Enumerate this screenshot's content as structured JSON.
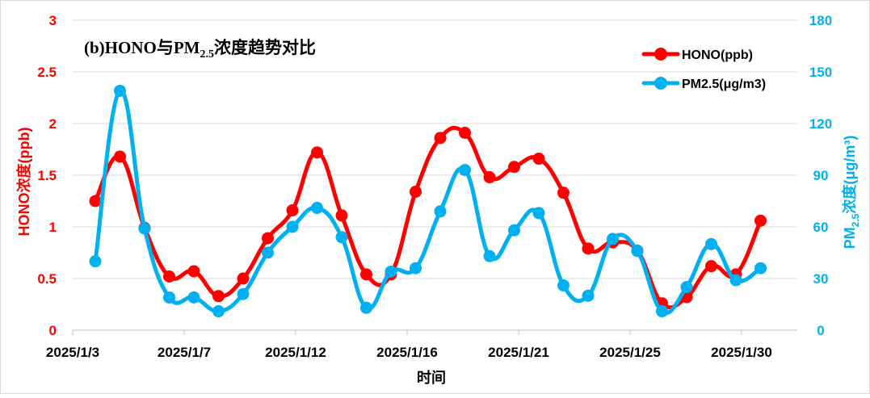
{
  "chart_data": {
    "type": "line",
    "title": "(b)HONO与PM",
    "title_sub": "2.5",
    "title_suffix": "浓度趋势对比",
    "xlabel": "时间",
    "ylabel_left": "HONO浓度(ppb)",
    "ylabel_right_prefix": "PM",
    "ylabel_right_sub": "2.5",
    "ylabel_right_suffix": "浓度(μg/m³)",
    "x_tick_labels": [
      "2025/1/3",
      "2025/1/7",
      "2025/1/12",
      "2025/1/16",
      "2025/1/21",
      "2025/1/25",
      "2025/1/30"
    ],
    "y_left": {
      "ylim": [
        0,
        3
      ],
      "ticks": [
        "0",
        "0.5",
        "1",
        "1.5",
        "2",
        "2.5",
        "3"
      ]
    },
    "y_right": {
      "ylim": [
        0,
        180
      ],
      "ticks": [
        "0",
        "30",
        "60",
        "90",
        "120",
        "150",
        "180"
      ]
    },
    "grid": true,
    "legend_position": "top-right",
    "series": [
      {
        "name": "HONO(ppb)",
        "axis": "left",
        "color": "#ff0000",
        "values": [
          1.25,
          1.68,
          0.99,
          0.52,
          0.57,
          0.33,
          0.5,
          0.89,
          1.16,
          1.72,
          1.11,
          0.54,
          0.54,
          1.34,
          1.86,
          1.91,
          1.48,
          1.58,
          1.66,
          1.33,
          0.79,
          0.85,
          0.77,
          0.26,
          0.32,
          0.62,
          0.54,
          1.06
        ]
      },
      {
        "name": "PM2.5(μg/m3)",
        "axis": "right",
        "color": "#00b0f0",
        "values": [
          40,
          139,
          59,
          19,
          19,
          11,
          21,
          45,
          60,
          71,
          54,
          13,
          34,
          36,
          69,
          93,
          43,
          58,
          68,
          26,
          20,
          53,
          46,
          11,
          25,
          50,
          29,
          36
        ]
      }
    ]
  }
}
